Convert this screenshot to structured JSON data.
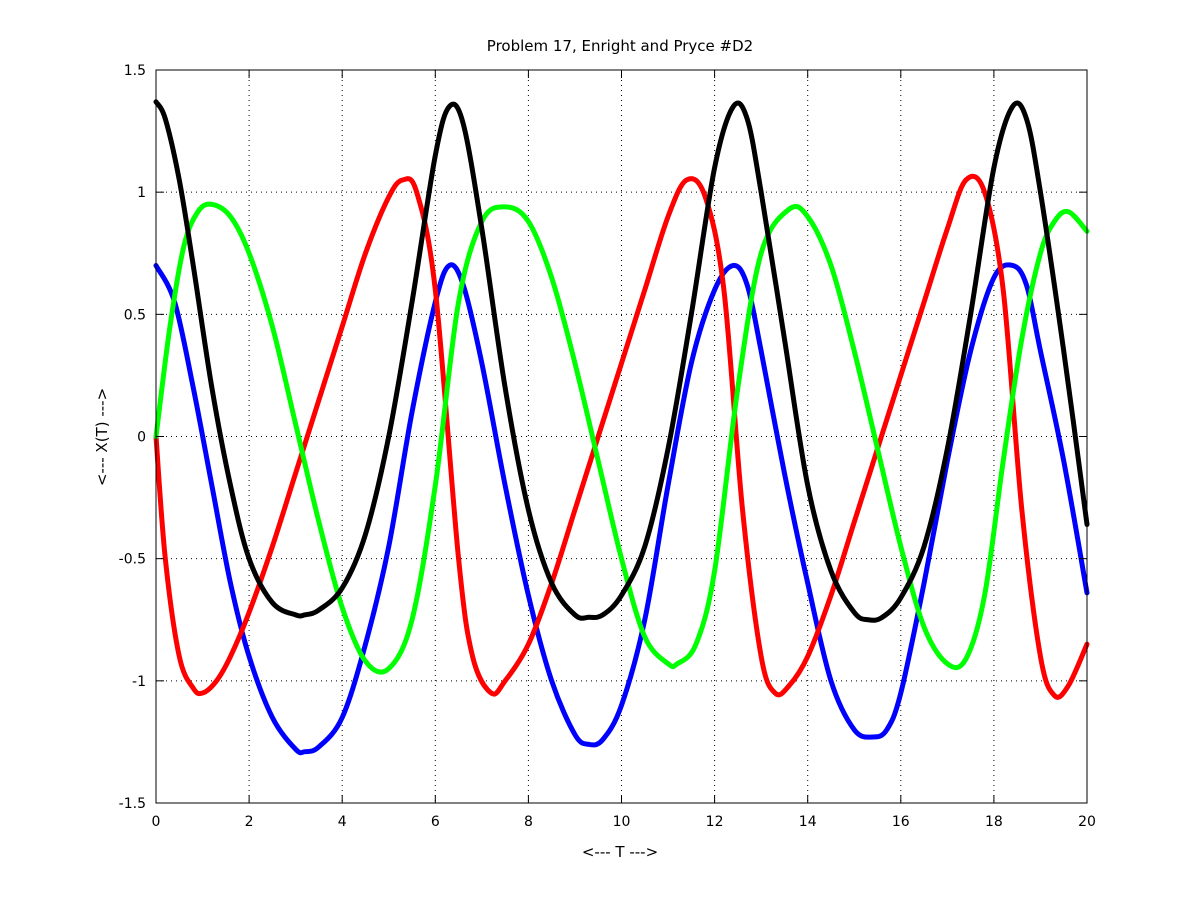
{
  "chart_data": {
    "type": "line",
    "title": "Problem 17, Enright and Pryce #D2",
    "xlabel": "<--- T --->",
    "ylabel": "<--- X(T) --->",
    "xlim": [
      0,
      20
    ],
    "ylim": [
      -1.5,
      1.5
    ],
    "xticks": [
      0,
      2,
      4,
      6,
      8,
      10,
      12,
      14,
      16,
      18,
      20
    ],
    "yticks": [
      -1.5,
      -1,
      -0.5,
      0,
      0.5,
      1,
      1.5
    ],
    "xtick_labels": [
      "0",
      "2",
      "4",
      "6",
      "8",
      "10",
      "12",
      "14",
      "16",
      "18",
      "20"
    ],
    "ytick_labels": [
      "-1.5",
      "-1",
      "-0.5",
      "0",
      "0.5",
      "1",
      "1.5"
    ],
    "grid": true,
    "series": [
      {
        "color": "#0000ff",
        "x": [
          0,
          0.4,
          0.8,
          1.2,
          1.6,
          2.0,
          2.5,
          3.0,
          3.2,
          3.5,
          4.0,
          4.5,
          5.0,
          5.5,
          6.0,
          6.3,
          6.6,
          7.0,
          7.5,
          8.0,
          8.5,
          9.0,
          9.3,
          9.6,
          10.0,
          10.5,
          11.0,
          11.5,
          12.0,
          12.4,
          12.7,
          13.0,
          13.5,
          14.0,
          14.5,
          15.0,
          15.4,
          15.7,
          16.0,
          16.5,
          17.0,
          17.5,
          18.0,
          18.4,
          18.7,
          19.0,
          19.5,
          20.0
        ],
        "y": [
          0.7,
          0.55,
          0.2,
          -0.2,
          -0.6,
          -0.9,
          -1.15,
          -1.28,
          -1.29,
          -1.27,
          -1.15,
          -0.85,
          -0.45,
          0.1,
          0.55,
          0.7,
          0.62,
          0.3,
          -0.2,
          -0.65,
          -1.0,
          -1.22,
          -1.26,
          -1.24,
          -1.1,
          -0.75,
          -0.2,
          0.3,
          0.6,
          0.7,
          0.62,
          0.35,
          -0.15,
          -0.6,
          -1.0,
          -1.2,
          -1.23,
          -1.2,
          -1.05,
          -0.6,
          -0.1,
          0.35,
          0.65,
          0.7,
          0.62,
          0.35,
          -0.1,
          -0.64
        ]
      },
      {
        "color": "#ff0000",
        "x": [
          0,
          0.2,
          0.5,
          0.8,
          1.0,
          1.3,
          1.6,
          2.0,
          2.5,
          3.0,
          3.5,
          4.0,
          4.5,
          5.0,
          5.3,
          5.6,
          6.0,
          6.5,
          6.8,
          7.2,
          7.5,
          8.0,
          8.5,
          9.0,
          9.5,
          10.0,
          10.5,
          11.0,
          11.4,
          11.8,
          12.2,
          12.6,
          13.0,
          13.3,
          13.6,
          14.0,
          14.5,
          15.0,
          15.5,
          16.0,
          16.5,
          17.0,
          17.4,
          17.8,
          18.2,
          18.6,
          19.0,
          19.3,
          19.6,
          20.0
        ],
        "y": [
          0,
          -0.5,
          -0.9,
          -1.03,
          -1.05,
          -1.0,
          -0.9,
          -0.72,
          -0.45,
          -0.15,
          0.15,
          0.45,
          0.75,
          0.98,
          1.05,
          1.0,
          0.6,
          -0.5,
          -0.9,
          -1.05,
          -1.0,
          -0.85,
          -0.6,
          -0.3,
          0.0,
          0.3,
          0.6,
          0.9,
          1.05,
          0.98,
          0.6,
          -0.3,
          -0.9,
          -1.05,
          -1.02,
          -0.9,
          -0.65,
          -0.35,
          -0.05,
          0.25,
          0.55,
          0.85,
          1.05,
          1.0,
          0.6,
          -0.3,
          -0.9,
          -1.06,
          -1.02,
          -0.85
        ]
      },
      {
        "color": "#00ff00",
        "x": [
          0,
          0.3,
          0.6,
          0.9,
          1.2,
          1.6,
          2.0,
          2.5,
          3.0,
          3.5,
          4.0,
          4.5,
          5.0,
          5.5,
          6.0,
          6.5,
          7.0,
          7.5,
          8.0,
          8.5,
          9.0,
          9.5,
          10.0,
          10.5,
          11.0,
          11.2,
          11.6,
          12.0,
          12.5,
          13.0,
          13.6,
          14.0,
          14.5,
          15.0,
          15.5,
          16.0,
          16.5,
          17.0,
          17.4,
          17.8,
          18.2,
          18.6,
          19.0,
          19.3,
          19.6,
          20.0
        ],
        "y": [
          0,
          0.45,
          0.78,
          0.92,
          0.95,
          0.9,
          0.75,
          0.45,
          0.05,
          -0.35,
          -0.7,
          -0.92,
          -0.95,
          -0.75,
          -0.2,
          0.55,
          0.88,
          0.94,
          0.88,
          0.65,
          0.3,
          -0.1,
          -0.5,
          -0.82,
          -0.93,
          -0.93,
          -0.85,
          -0.55,
          0.2,
          0.75,
          0.93,
          0.9,
          0.7,
          0.35,
          -0.05,
          -0.45,
          -0.78,
          -0.93,
          -0.91,
          -0.65,
          -0.1,
          0.4,
          0.75,
          0.88,
          0.92,
          0.84
        ]
      },
      {
        "color": "#000000",
        "x": [
          0,
          0.2,
          0.5,
          0.8,
          1.2,
          1.6,
          2.0,
          2.5,
          3.0,
          3.2,
          3.5,
          4.0,
          4.5,
          5.0,
          5.5,
          6.0,
          6.3,
          6.6,
          7.0,
          7.5,
          8.0,
          8.5,
          9.0,
          9.3,
          9.6,
          10.0,
          10.5,
          11.0,
          11.5,
          12.0,
          12.4,
          12.7,
          13.0,
          13.5,
          14.0,
          14.5,
          15.0,
          15.3,
          15.6,
          16.0,
          16.5,
          17.0,
          17.5,
          18.0,
          18.4,
          18.7,
          19.0,
          19.5,
          20.0
        ],
        "y": [
          1.37,
          1.3,
          1.05,
          0.7,
          0.2,
          -0.2,
          -0.5,
          -0.68,
          -0.73,
          -0.73,
          -0.71,
          -0.62,
          -0.4,
          0.0,
          0.55,
          1.15,
          1.35,
          1.28,
          0.85,
          0.2,
          -0.3,
          -0.6,
          -0.73,
          -0.74,
          -0.73,
          -0.65,
          -0.45,
          -0.05,
          0.5,
          1.1,
          1.35,
          1.3,
          1.0,
          0.4,
          -0.2,
          -0.55,
          -0.72,
          -0.75,
          -0.74,
          -0.66,
          -0.45,
          -0.05,
          0.5,
          1.1,
          1.35,
          1.3,
          1.0,
          0.35,
          -0.36
        ]
      }
    ]
  }
}
